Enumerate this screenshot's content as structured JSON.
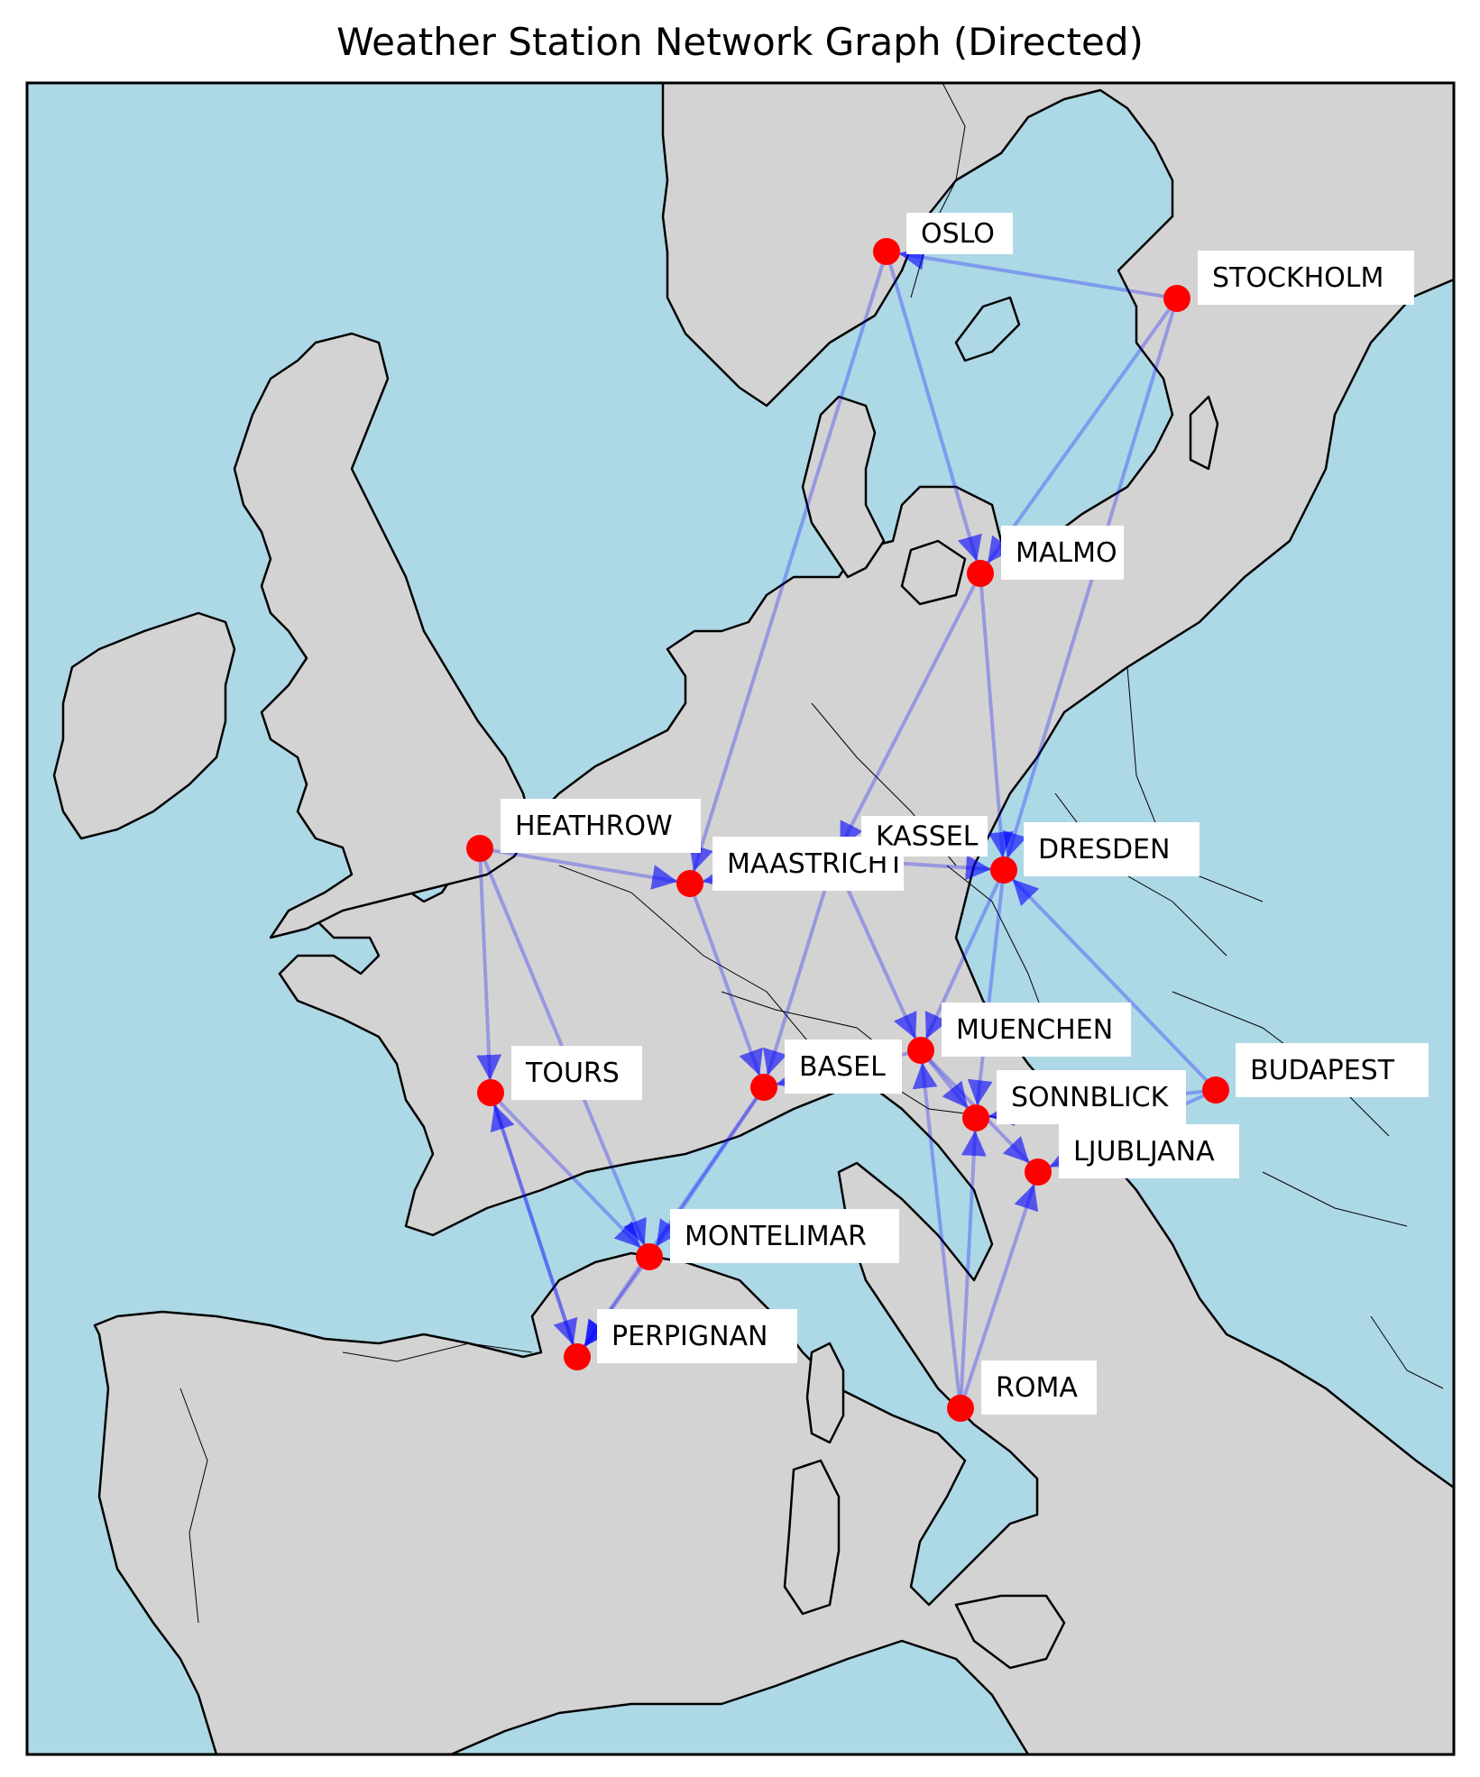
{
  "title": "Weather Station Network Graph (Directed)",
  "colors": {
    "sea": "#add8e6",
    "land": "#d3d3d3",
    "coast": "#000000",
    "node": "#ff0000",
    "edge": "#0000ff"
  },
  "stations": [
    {
      "id": "oslo",
      "name": "OSLO"
    },
    {
      "id": "stockholm",
      "name": "STOCKHOLM"
    },
    {
      "id": "malmo",
      "name": "MALMO"
    },
    {
      "id": "heathrow",
      "name": "HEATHROW"
    },
    {
      "id": "maastricht",
      "name": "MAASTRICHT"
    },
    {
      "id": "kassel",
      "name": "KASSEL"
    },
    {
      "id": "dresden",
      "name": "DRESDEN"
    },
    {
      "id": "tours",
      "name": "TOURS"
    },
    {
      "id": "basel",
      "name": "BASEL"
    },
    {
      "id": "muenchen",
      "name": "MUENCHEN"
    },
    {
      "id": "budapest",
      "name": "BUDAPEST"
    },
    {
      "id": "sonnblick",
      "name": "SONNBLICK"
    },
    {
      "id": "ljubljana",
      "name": "LJUBLJANA"
    },
    {
      "id": "montelimar",
      "name": "MONTELIMAR"
    },
    {
      "id": "perpignan",
      "name": "PERPIGNAN"
    },
    {
      "id": "roma",
      "name": "ROMA"
    }
  ],
  "edges": [
    {
      "from": "stockholm",
      "to": "oslo"
    },
    {
      "from": "oslo",
      "to": "malmo"
    },
    {
      "from": "oslo",
      "to": "maastricht"
    },
    {
      "from": "stockholm",
      "to": "dresden"
    },
    {
      "from": "stockholm",
      "to": "malmo"
    },
    {
      "from": "malmo",
      "to": "dresden"
    },
    {
      "from": "malmo",
      "to": "kassel"
    },
    {
      "from": "heathrow",
      "to": "maastricht"
    },
    {
      "from": "heathrow",
      "to": "tours"
    },
    {
      "from": "heathrow",
      "to": "montelimar"
    },
    {
      "from": "kassel",
      "to": "maastricht"
    },
    {
      "from": "kassel",
      "to": "dresden"
    },
    {
      "from": "maastricht",
      "to": "basel"
    },
    {
      "from": "kassel",
      "to": "muenchen"
    },
    {
      "from": "kassel",
      "to": "basel"
    },
    {
      "from": "dresden",
      "to": "muenchen"
    },
    {
      "from": "dresden",
      "to": "sonnblick"
    },
    {
      "from": "budapest",
      "to": "dresden"
    },
    {
      "from": "budapest",
      "to": "sonnblick"
    },
    {
      "from": "budapest",
      "to": "ljubljana"
    },
    {
      "from": "muenchen",
      "to": "basel"
    },
    {
      "from": "muenchen",
      "to": "sonnblick"
    },
    {
      "from": "muenchen",
      "to": "ljubljana"
    },
    {
      "from": "tours",
      "to": "montelimar"
    },
    {
      "from": "tours",
      "to": "perpignan"
    },
    {
      "from": "montelimar",
      "to": "perpignan"
    },
    {
      "from": "basel",
      "to": "montelimar"
    },
    {
      "from": "basel",
      "to": "perpignan"
    },
    {
      "from": "perpignan",
      "to": "tours"
    },
    {
      "from": "roma",
      "to": "ljubljana"
    },
    {
      "from": "roma",
      "to": "sonnblick"
    },
    {
      "from": "roma",
      "to": "muenchen"
    }
  ]
}
